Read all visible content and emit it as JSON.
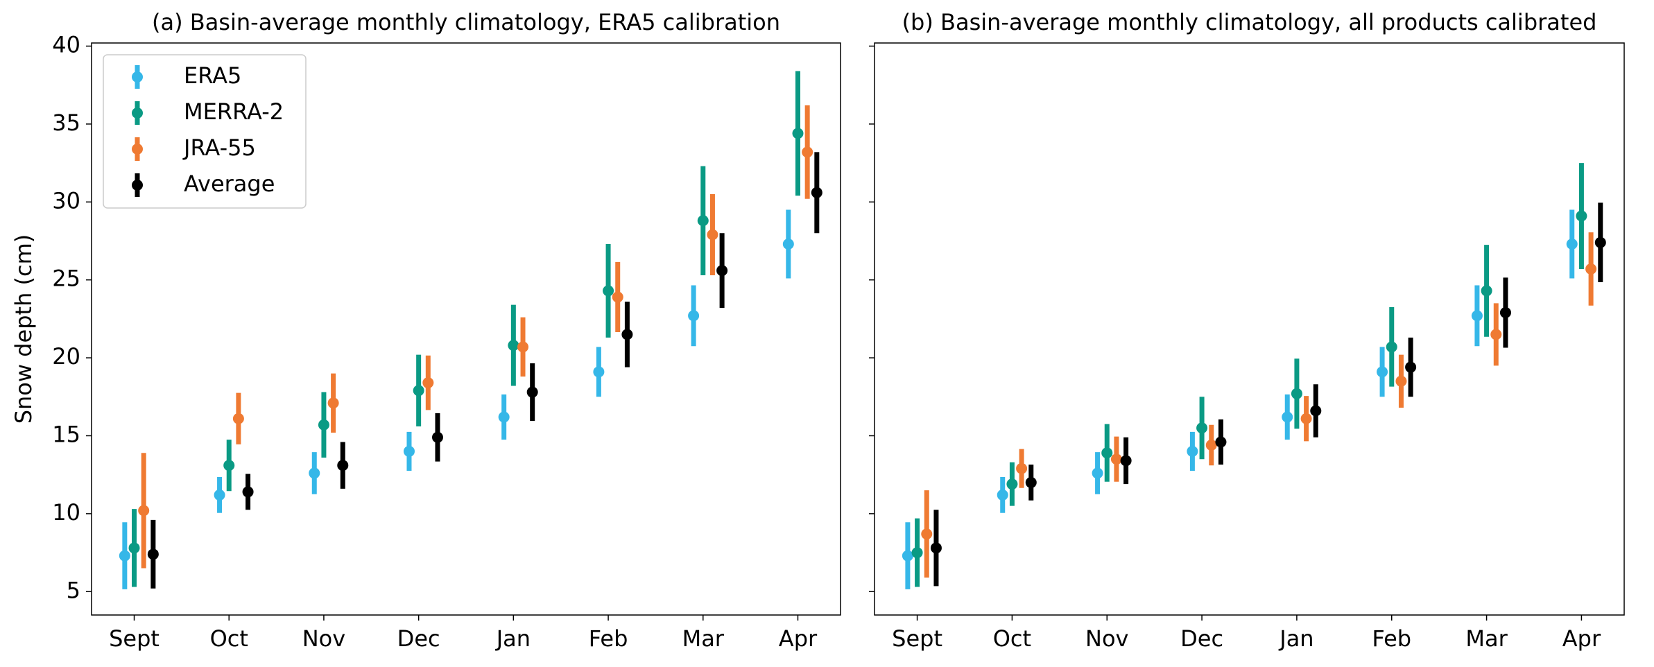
{
  "chart_data": [
    {
      "type": "errorbar",
      "title": "(a) Basin-average monthly climatology, ERA5 calibration",
      "ylabel": "Snow depth (cm)",
      "categories": [
        "Sept",
        "Oct",
        "Nov",
        "Dec",
        "Jan",
        "Feb",
        "Mar",
        "Apr"
      ],
      "series": [
        {
          "name": "ERA5",
          "color": "#35b7e8",
          "values": [
            7.3,
            11.2,
            12.6,
            14.0,
            16.2,
            19.1,
            22.7,
            27.3
          ],
          "errors": [
            2.15,
            1.15,
            1.35,
            1.25,
            1.45,
            1.6,
            1.95,
            2.2
          ]
        },
        {
          "name": "MERRA-2",
          "color": "#0a9a84",
          "values": [
            7.8,
            13.1,
            15.7,
            17.9,
            20.8,
            24.3,
            28.8,
            34.4
          ],
          "errors": [
            2.5,
            1.65,
            2.1,
            2.3,
            2.6,
            3.0,
            3.5,
            4.0
          ]
        },
        {
          "name": "JRA-55",
          "color": "#ef7a32",
          "values": [
            10.2,
            16.1,
            17.1,
            18.4,
            20.7,
            23.9,
            27.9,
            33.2
          ],
          "errors": [
            3.7,
            1.65,
            1.9,
            1.75,
            1.9,
            2.25,
            2.6,
            3.0
          ]
        },
        {
          "name": "Average",
          "color": "#000000",
          "values": [
            7.4,
            11.4,
            13.1,
            14.9,
            17.8,
            21.5,
            25.6,
            30.6
          ],
          "errors": [
            2.2,
            1.15,
            1.5,
            1.55,
            1.85,
            2.1,
            2.4,
            2.6
          ]
        }
      ],
      "ylim": [
        3.5,
        40.2
      ],
      "yticks": [
        5,
        10,
        15,
        20,
        25,
        30,
        35,
        40
      ],
      "legend": "upper left"
    },
    {
      "type": "errorbar",
      "title": "(b) Basin-average monthly climatology, all products calibrated",
      "categories": [
        "Sept",
        "Oct",
        "Nov",
        "Dec",
        "Jan",
        "Feb",
        "Mar",
        "Apr"
      ],
      "series": [
        {
          "color": "#35b7e8",
          "values": [
            7.3,
            11.2,
            12.6,
            14.0,
            16.2,
            19.1,
            22.7,
            27.3
          ],
          "errors": [
            2.15,
            1.15,
            1.35,
            1.25,
            1.45,
            1.6,
            1.95,
            2.2
          ]
        },
        {
          "color": "#0a9a84",
          "values": [
            7.5,
            11.9,
            13.9,
            15.5,
            17.7,
            20.7,
            24.3,
            29.1
          ],
          "errors": [
            2.2,
            1.4,
            1.85,
            2.0,
            2.25,
            2.55,
            2.95,
            3.4
          ]
        },
        {
          "color": "#ef7a32",
          "values": [
            8.7,
            12.9,
            13.5,
            14.4,
            16.1,
            18.5,
            21.5,
            25.7
          ],
          "errors": [
            2.8,
            1.25,
            1.45,
            1.3,
            1.45,
            1.7,
            2.0,
            2.35
          ]
        },
        {
          "color": "#000000",
          "values": [
            7.8,
            12.0,
            13.4,
            14.6,
            16.6,
            19.4,
            22.9,
            27.4
          ],
          "errors": [
            2.45,
            1.15,
            1.5,
            1.45,
            1.7,
            1.9,
            2.25,
            2.55
          ]
        }
      ],
      "ylim": [
        3.5,
        40.2
      ],
      "yticks": [
        5,
        10,
        15,
        20,
        25,
        30,
        35,
        40
      ]
    }
  ]
}
